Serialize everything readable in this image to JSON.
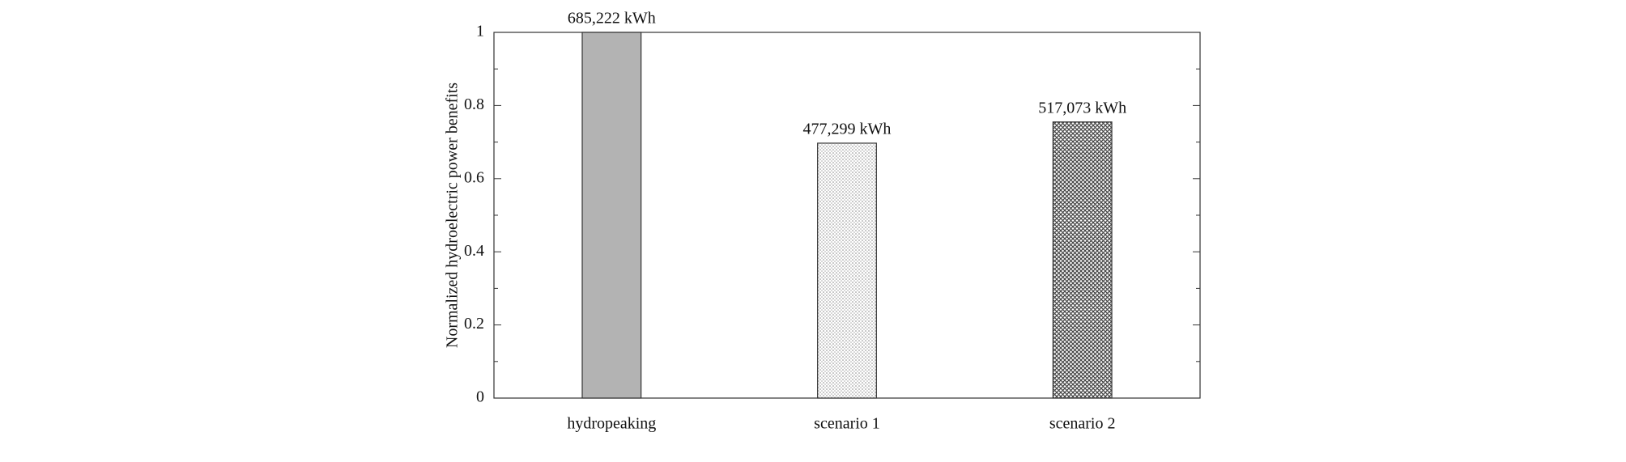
{
  "chart_data": {
    "type": "bar",
    "ylabel": "Normalized hydroelectric power benefits",
    "categories": [
      "hydropeaking",
      "scenario 1",
      "scenario 2"
    ],
    "values": [
      1,
      0.697,
      0.755
    ],
    "bar_labels": [
      "685,222 kWh",
      "477,299 kWh",
      "517,073 kWh"
    ],
    "colors": [
      "#b3b3b3",
      "#cfcfcf",
      "#555555"
    ],
    "patterns": [
      "solid",
      "dots",
      "crosshatch"
    ],
    "ylim": [
      0,
      1
    ],
    "yticks": [
      0,
      0.2,
      0.4,
      0.6,
      0.8,
      1
    ],
    "minor_yticks": [
      0.1,
      0.3,
      0.5,
      0.7,
      0.9
    ],
    "grid": false
  }
}
